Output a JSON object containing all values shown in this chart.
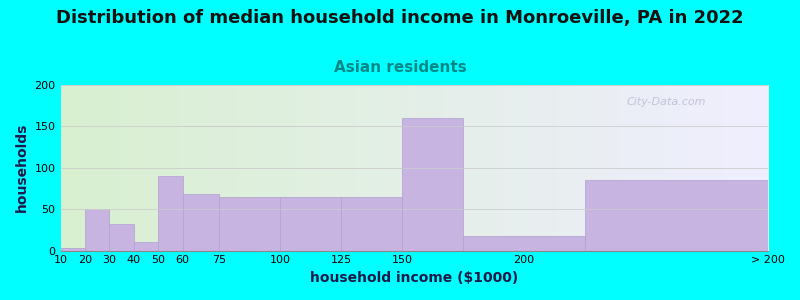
{
  "title": "Distribution of median household income in Monroeville, PA in 2022",
  "subtitle": "Asian residents",
  "xlabel": "household income ($1000)",
  "ylabel": "households",
  "background_color": "#00FFFF",
  "bar_color": "#c8b4e0",
  "bar_edge_color": "#b0a0d0",
  "bins_left": [
    10,
    20,
    30,
    40,
    50,
    60,
    75,
    100,
    125,
    150,
    175,
    225
  ],
  "bins_right": [
    20,
    30,
    40,
    50,
    60,
    75,
    100,
    125,
    150,
    175,
    225,
    300
  ],
  "values": [
    3,
    50,
    32,
    10,
    90,
    68,
    65,
    65,
    65,
    160,
    18,
    85
  ],
  "xtick_positions": [
    10,
    20,
    30,
    40,
    50,
    60,
    75,
    100,
    125,
    150,
    200,
    300
  ],
  "xtick_labels": [
    "10",
    "20",
    "30",
    "40",
    "50",
    "60",
    "75",
    "100",
    "125",
    "150",
    "200",
    "> 200"
  ],
  "xlim": [
    10,
    300
  ],
  "ylim": [
    0,
    200
  ],
  "yticks": [
    0,
    50,
    100,
    150,
    200
  ],
  "title_fontsize": 13,
  "subtitle_fontsize": 11,
  "axis_label_fontsize": 10,
  "tick_fontsize": 8,
  "watermark": "City-Data.com"
}
